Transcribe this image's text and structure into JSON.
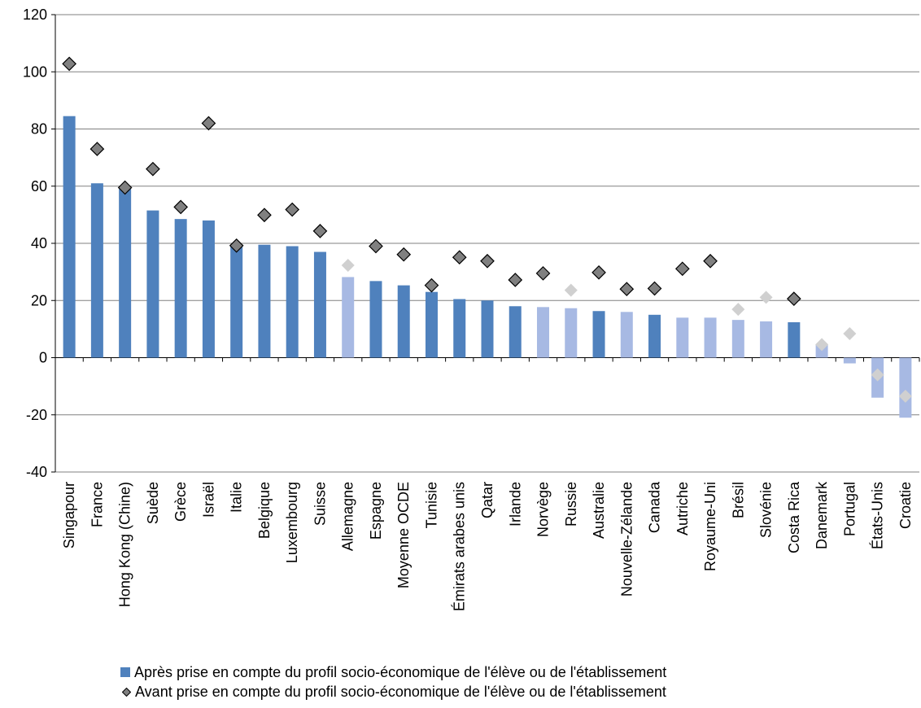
{
  "chart_data": {
    "type": "bar",
    "ylim": [
      -40,
      120
    ],
    "yticks": [
      -40,
      -20,
      0,
      20,
      40,
      60,
      80,
      100,
      120
    ],
    "grid": true,
    "legend_position": "bottom",
    "categories": [
      "Singapour",
      "France",
      "Hong Kong (Chine)",
      "Suède",
      "Grèce",
      "Israël",
      "Italie",
      "Belgique",
      "Luxembourg",
      "Suisse",
      "Allemagne",
      "Espagne",
      "Moyenne OCDE",
      "Tunisie",
      "Émirats arabes unis",
      "Qatar",
      "Irlande",
      "Norvège",
      "Russie",
      "Australie",
      "Nouvelle-Zélande",
      "Canada",
      "Autriche",
      "Royaume-Uni",
      "Brésil",
      "Slovénie",
      "Costa Rica",
      "Danemark",
      "Portugal",
      "États-Unis",
      "Croatie"
    ],
    "series": [
      {
        "name": "Après prise en compte du profil socio-économique de l'élève ou de l'établissement",
        "kind": "bar",
        "values": [
          84.5,
          61,
          59,
          51.5,
          48.5,
          48,
          39.5,
          39.5,
          39,
          37,
          28.2,
          26.8,
          25.3,
          23,
          20.5,
          20,
          18,
          17.7,
          17.3,
          16.3,
          16,
          15,
          14,
          14,
          13.2,
          12.7,
          12.4,
          4.5,
          -2,
          -14,
          -21
        ],
        "significant": [
          true,
          true,
          true,
          true,
          true,
          true,
          true,
          true,
          true,
          true,
          false,
          true,
          true,
          true,
          true,
          true,
          true,
          false,
          false,
          true,
          false,
          true,
          false,
          false,
          false,
          false,
          true,
          false,
          false,
          false,
          false
        ]
      },
      {
        "name": "Avant prise en compte du profil socio-économique de l'élève ou de l'établissement",
        "kind": "diamond",
        "values": [
          102.8,
          73,
          59.5,
          66,
          52.7,
          82,
          39.2,
          49.9,
          51.8,
          44.3,
          32.3,
          39,
          36.1,
          25.3,
          35.1,
          33.8,
          27.2,
          29.5,
          23.6,
          29.8,
          24,
          24.2,
          31.1,
          33.8,
          16.9,
          21.1,
          20.6,
          4.6,
          8.4,
          -6,
          -13.5
        ],
        "significant": [
          true,
          true,
          true,
          true,
          true,
          true,
          true,
          true,
          true,
          true,
          false,
          true,
          true,
          true,
          true,
          true,
          true,
          true,
          false,
          true,
          true,
          true,
          true,
          true,
          false,
          false,
          true,
          false,
          false,
          false,
          false
        ]
      }
    ],
    "colors": {
      "bar_significant": "#4F81BD",
      "bar_not_significant": "#A7B9E3",
      "diamond_significant": "#808080",
      "diamond_not_significant": "#D0D0D0",
      "grid": "#808080",
      "axis": "#000000"
    }
  },
  "legend": {
    "bar_label": "Après prise en compte du profil socio-économique de l'élève ou de l'établissement",
    "diamond_label": "Avant prise en compte du profil socio-économique de l'élève ou de l'établissement"
  }
}
